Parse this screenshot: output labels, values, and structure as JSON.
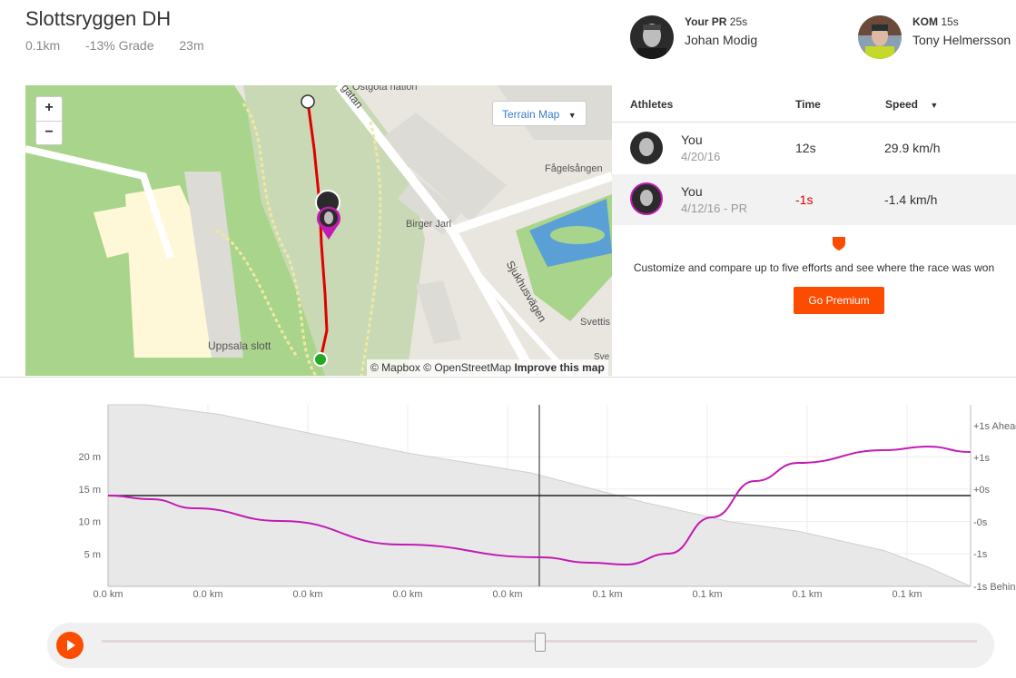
{
  "segment": {
    "title": "Slottsryggen DH",
    "distance": "0.1km",
    "grade": "-13% Grade",
    "elevation": "23m"
  },
  "leaders": {
    "pr": {
      "label": "Your PR",
      "time": "25s",
      "name": "Johan Modig"
    },
    "kom": {
      "label": "KOM",
      "time": "15s",
      "name": "Tony Helmersson"
    }
  },
  "map": {
    "zoom_in": "+",
    "zoom_out": "−",
    "terrain_label": "Terrain Map",
    "attribution_mapbox": "© Mapbox",
    "attribution_osm": "© OpenStreetMap",
    "improve": "Improve this map",
    "places": {
      "ostgota": "Östgöta nation",
      "fagelsangen": "Fågelsången",
      "birger_jarl": "Birger Jarl",
      "sjukhusvagen": "Sjukhusvägen",
      "uppsala_slott": "Uppsala slott",
      "svettis": "Svettis",
      "street_top": "gatan",
      "sve": "Sve"
    }
  },
  "table": {
    "headers": {
      "athletes": "Athletes",
      "time": "Time",
      "speed": "Speed"
    },
    "rows": [
      {
        "name": "You",
        "date": "4/20/16",
        "time": "12s",
        "speed": "29.9 km/h"
      },
      {
        "name": "You",
        "date": "4/12/16 - PR",
        "time": "-1s",
        "speed": "-1.4 km/h"
      }
    ],
    "premium_text": "Customize and compare up to five efforts and see where the race was won",
    "premium_button": "Go Premium"
  },
  "colors": {
    "accent": "#fc4c02",
    "pr_series": "#c21bb3",
    "route": "#e00000"
  },
  "chart_data": {
    "type": "area",
    "x_ticks": [
      "0.0 km",
      "0.0 km",
      "0.0 km",
      "0.0 km",
      "0.0 km",
      "0.1 km",
      "0.1 km",
      "0.1 km",
      "0.1 km"
    ],
    "y_left_ticks": [
      "20 m",
      "15 m",
      "10 m",
      "5 m"
    ],
    "y_left_values": [
      20,
      15,
      10,
      5
    ],
    "y_left_range": [
      0,
      28
    ],
    "y_right_ticks": [
      "+1s Ahead",
      "+1s",
      "+0s",
      "-0s",
      "-1s",
      "-1s Behind"
    ],
    "elevation_profile": [
      [
        0,
        28
      ],
      [
        0.045,
        28
      ],
      [
        0.13,
        26.5
      ],
      [
        0.22,
        24
      ],
      [
        0.35,
        20.5
      ],
      [
        0.49,
        17.5
      ],
      [
        0.62,
        13
      ],
      [
        0.72,
        10
      ],
      [
        0.8,
        8.5
      ],
      [
        0.85,
        7
      ],
      [
        0.9,
        5.5
      ],
      [
        0.95,
        3
      ],
      [
        1.0,
        0
      ]
    ],
    "time_gap": [
      [
        0,
        0
      ],
      [
        0.05,
        -0.1
      ],
      [
        0.1,
        -0.35
      ],
      [
        0.2,
        -0.7
      ],
      [
        0.34,
        -1.35
      ],
      [
        0.5,
        -1.7
      ],
      [
        0.56,
        -1.85
      ],
      [
        0.6,
        -1.9
      ],
      [
        0.65,
        -1.6
      ],
      [
        0.7,
        -0.6
      ],
      [
        0.75,
        0.4
      ],
      [
        0.8,
        0.9
      ],
      [
        0.9,
        1.25
      ],
      [
        0.95,
        1.35
      ],
      [
        1.0,
        1.2
      ]
    ],
    "time_gap_range": [
      -2.5,
      2.5
    ]
  }
}
